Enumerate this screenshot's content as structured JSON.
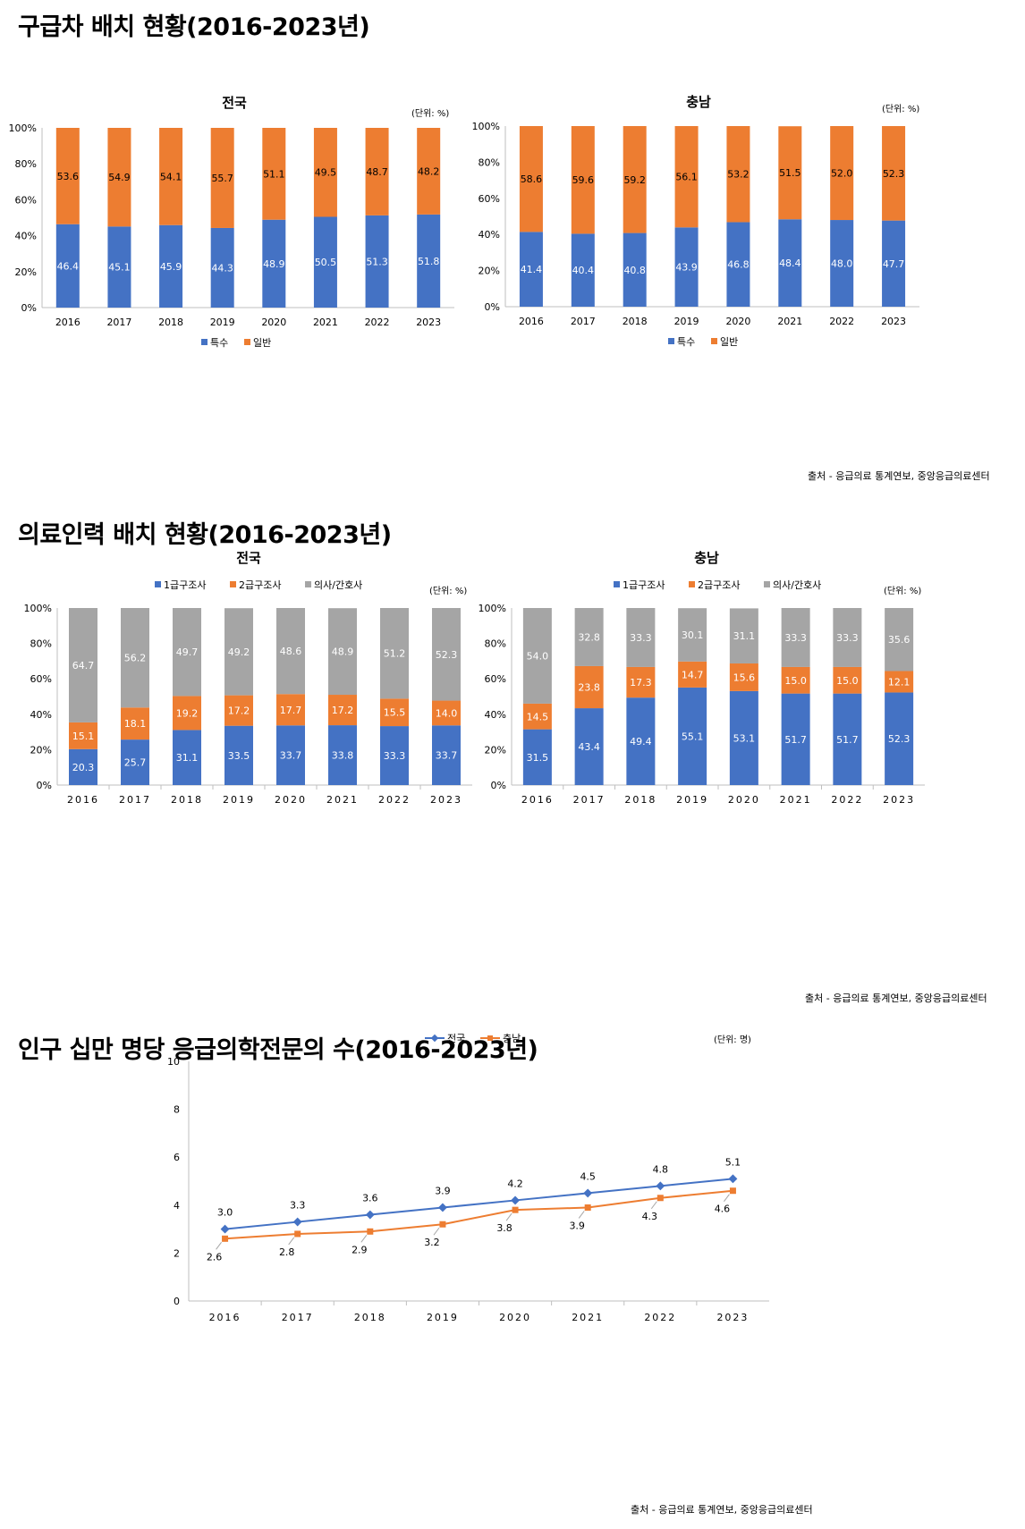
{
  "sections": [
    {
      "title": "구급차 배치 현황(2016-2023년)",
      "source": "출처 - 응급의료 통계연보, 중앙응급의료센터"
    },
    {
      "title": "의료인력 배치 현황(2016-2023년)",
      "source": "출처 - 응급의료 통계연보, 중앙응급의료센터"
    },
    {
      "title": "인구 십만 명당 응급의학전문의 수(2016-2023년)",
      "source": "출처 - 응급의료 통계연보, 중앙응급의료센터"
    }
  ],
  "colors": {
    "blue": "#4472C4",
    "orange": "#ED7D31",
    "gray": "#A5A5A5"
  },
  "chart_data": [
    {
      "type": "bar",
      "stacked": true,
      "title": "전국",
      "unit": "(단위: %)",
      "categories": [
        "2016",
        "2017",
        "2018",
        "2019",
        "2020",
        "2021",
        "2022",
        "2023"
      ],
      "series": [
        {
          "name": "특수",
          "values": [
            46.4,
            45.1,
            45.9,
            44.3,
            48.9,
            50.5,
            51.3,
            51.8
          ]
        },
        {
          "name": "일반",
          "values": [
            53.6,
            54.9,
            54.1,
            55.7,
            51.1,
            49.5,
            48.7,
            48.2
          ]
        }
      ],
      "ylim": [
        0,
        100
      ],
      "yticks": [
        "0%",
        "20%",
        "40%",
        "60%",
        "80%",
        "100%"
      ],
      "legend": "bottom"
    },
    {
      "type": "bar",
      "stacked": true,
      "title": "충남",
      "unit": "(단위: %)",
      "categories": [
        "2016",
        "2017",
        "2018",
        "2019",
        "2020",
        "2021",
        "2022",
        "2023"
      ],
      "series": [
        {
          "name": "특수",
          "values": [
            41.4,
            40.4,
            40.8,
            43.9,
            46.8,
            48.4,
            48.0,
            47.7
          ]
        },
        {
          "name": "일반",
          "values": [
            58.6,
            59.6,
            59.2,
            56.1,
            53.2,
            51.5,
            52.0,
            52.3
          ]
        }
      ],
      "ylim": [
        0,
        100
      ],
      "yticks": [
        "0%",
        "20%",
        "40%",
        "60%",
        "80%",
        "100%"
      ],
      "legend": "bottom"
    },
    {
      "type": "bar",
      "stacked": true,
      "title": "전국",
      "unit": "(단위: %)",
      "categories": [
        "2016",
        "2017",
        "2018",
        "2019",
        "2020",
        "2021",
        "2022",
        "2023"
      ],
      "series": [
        {
          "name": "1급구조사",
          "values": [
            20.3,
            25.7,
            31.1,
            33.5,
            33.7,
            33.8,
            33.3,
            33.7
          ]
        },
        {
          "name": "2급구조사",
          "values": [
            15.1,
            18.1,
            19.2,
            17.2,
            17.7,
            17.2,
            15.5,
            14.0
          ]
        },
        {
          "name": "의사/간호사",
          "values": [
            64.7,
            56.2,
            49.7,
            49.2,
            48.6,
            48.9,
            51.2,
            52.3
          ]
        }
      ],
      "ylim": [
        0,
        100
      ],
      "yticks": [
        "0%",
        "20%",
        "40%",
        "60%",
        "80%",
        "100%"
      ],
      "legend": "top"
    },
    {
      "type": "bar",
      "stacked": true,
      "title": "충남",
      "unit": "(단위: %)",
      "categories": [
        "2016",
        "2017",
        "2018",
        "2019",
        "2020",
        "2021",
        "2022",
        "2023"
      ],
      "series": [
        {
          "name": "1급구조사",
          "values": [
            31.5,
            43.4,
            49.4,
            55.1,
            53.1,
            51.7,
            51.7,
            52.3
          ]
        },
        {
          "name": "2급구조사",
          "values": [
            14.5,
            23.8,
            17.3,
            14.7,
            15.6,
            15.0,
            15.0,
            12.1
          ]
        },
        {
          "name": "의사/간호사",
          "values": [
            54.0,
            32.8,
            33.3,
            30.1,
            31.1,
            33.3,
            33.3,
            35.6
          ]
        }
      ],
      "ylim": [
        0,
        100
      ],
      "yticks": [
        "0%",
        "20%",
        "40%",
        "60%",
        "80%",
        "100%"
      ],
      "legend": "top"
    },
    {
      "type": "line",
      "unit": "(단위: 명)",
      "categories": [
        "2016",
        "2017",
        "2018",
        "2019",
        "2020",
        "2021",
        "2022",
        "2023"
      ],
      "series": [
        {
          "name": "전국",
          "values": [
            3.0,
            3.3,
            3.6,
            3.9,
            4.2,
            4.5,
            4.8,
            5.1
          ]
        },
        {
          "name": "충남",
          "values": [
            2.6,
            2.8,
            2.9,
            3.2,
            3.8,
            3.9,
            4.3,
            4.6
          ]
        }
      ],
      "ylim": [
        0,
        10
      ],
      "yticks": [
        "0",
        "2",
        "4",
        "6",
        "8",
        "10"
      ],
      "legend": "top"
    }
  ]
}
